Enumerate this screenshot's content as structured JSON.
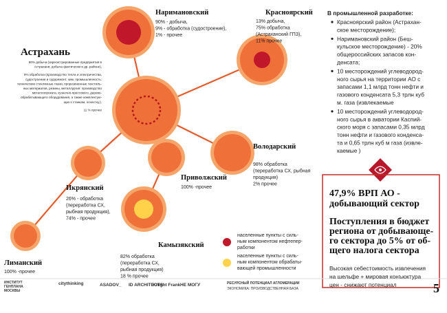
{
  "nodes": [
    {
      "name": "Астрахань",
      "paragraphs": [
        [
          "80% добыча (зарегистрированные предприятия в",
          "Астрахани, добыча фактически в др. районе),"
        ],
        [
          "9% обработка (производство тепла и электричества,",
          "судостроение и судоремонт, хим. промышленность:",
          "технические стеклянные ткани, прорезиненные текстиль-",
          "ных материалов, резины, металлургия: производство",
          "металлопроката, кузнечно-прессового, дерево-",
          "обрабатывающего оборудования, а также комплектую-",
          "щих к станкам, оснастку.),"
        ],
        [
          "11 % прочее"
        ]
      ]
    },
    {
      "name": "Наримановский",
      "lines": [
        "90% - добыча,",
        "9% - обработка (судостроение),",
        "1% - прочее"
      ]
    },
    {
      "name": "Красноярский",
      "lines": [
        "13% добыча,",
        "75% обработка",
        "(Астраханский ГПЗ),",
        "11% прочее"
      ]
    },
    {
      "name": "Володарский",
      "lines": [
        "98% обработка",
        "(переработка СХ, рыбная",
        "продукция)",
        "2% прочее"
      ]
    },
    {
      "name": "Приволжский",
      "lines": [
        "100% -прочее"
      ]
    },
    {
      "name": "Икрянский",
      "lines": [
        "26% - обработка",
        "(переработка СХ,",
        "рыбная продукция),",
        "74% - прочее"
      ]
    },
    {
      "name": "Камызякский",
      "lines": [
        "82% обработка",
        "(переработка СХ,",
        "рыбная продукция)",
        "18 % прочее"
      ]
    },
    {
      "name": "Лиманский",
      "lines": [
        "100% -прочее"
      ]
    }
  ],
  "panel": {
    "heading": "В промышленной разработке:",
    "bullets": [
      [
        "Красноярский район (Астрахан-",
        "ское месторождение);"
      ],
      [
        "Наримановский район  (Беш-",
        "кульское месторождение) - 20%",
        "общероссийских запасов кон-",
        "денсата;"
      ],
      [
        "10 месторождений углеводород-",
        "ного сырья на территории АО с",
        "запасами 1,1 млрд тонн нефти и",
        "газового конденсата 5,3 трлн куб",
        "м. газа (извлекаемые"
      ],
      [
        "10 месторождений  углеводород-",
        "ного сырья в акватории Каспий-",
        "ского моря с запасами 0,35 млрд",
        "тонн нефти и газового конденса-",
        "та и 0,65 трлн куб м газа (извле-",
        "каемые )"
      ]
    ]
  },
  "box": {
    "headline": [
      "47,9% ВРП АО -",
      "добывающий сектор"
    ],
    "revenue": [
      "Поступления в бюджет",
      "региона от добывающе-",
      "го сектора до 5% от об-",
      "щего налога сектора"
    ],
    "note": [
      "Высокая себестоимость извлечения",
      "на шельфе + мировая конъюктура",
      "цен  - снижают потенциал"
    ]
  },
  "legend": [
    [
      "населенные пункты с силь-",
      "ным компонентом нефтепер-",
      "работки"
    ],
    [
      "населенные пункты с силь-",
      "ным компонентом обрабаты-",
      "вающей промышленности"
    ]
  ],
  "footer": {
    "logos": [
      "ИНСТИТУТ",
      "ГЕНПЛАНА",
      "МОСКВЫ",
      "citythinking",
      "ASADOV_",
      "ID ARCHITECTS",
      "Knight Frank",
      "НЕ МОГУ"
    ],
    "title": "РЕСУРСНЫЙ ПОТЕНЦИАЛ АГЛОМЕРАЦИИ",
    "subtitle": "ЭКОНОМИКА: ПРОИЗВОДСТВЕННАЯ БАЗА",
    "page": "5"
  }
}
